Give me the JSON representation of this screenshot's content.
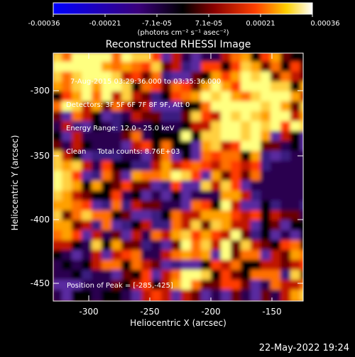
{
  "colorbar": {
    "tick_labels": [
      "-0.00036",
      "-0.00021",
      "-7.1e-05",
      "7.1e-05",
      "0.00021",
      "0.00036"
    ],
    "units_label": "(photons cm⁻² s⁻¹ asec⁻²)"
  },
  "plot": {
    "title": "Reconstructed RHESSI Image",
    "xlabel": "Heliocentric X (arcsec)",
    "ylabel": "Heliocentric Y (arcsec)",
    "xticks": [
      "-300",
      "-250",
      "-200",
      "-150"
    ],
    "yticks": [
      "-300",
      "-350",
      "-400",
      "-450"
    ],
    "info_lines": [
      "7-Aug-2015 03:29:36.000 to 03:35:36.000",
      "Detectors: 3F 5F 6F 7F 8F 9F, Att 0",
      "Energy Range: 12.0 - 25.0 keV",
      "Clean     Total counts: 8.76E+03"
    ],
    "peak_text": "Position of Peak = [-285,-425]"
  },
  "footer": {
    "timestamp": "22-May-2022 19:24"
  }
}
